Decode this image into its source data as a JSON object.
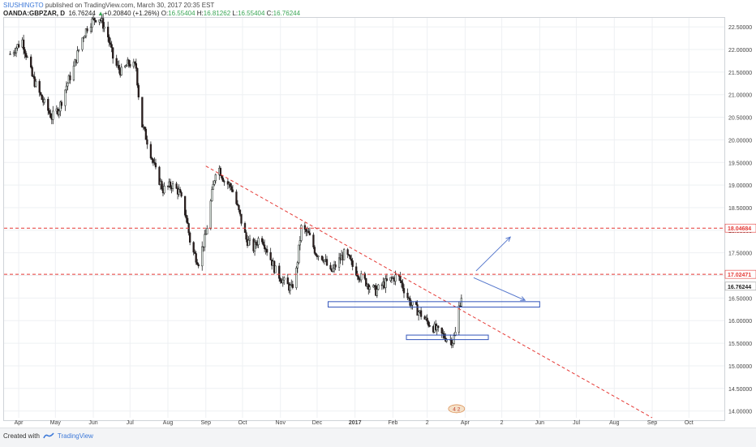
{
  "header": {
    "author": "SIUSHINGTO",
    "published": "published on TradingView.com, March 30, 2017 20:35 EST",
    "symbol": "OANDA:GBPZAR, D",
    "last": "16.76244",
    "change_arrow": "▲",
    "change": "+0.20840 (+1.26%)",
    "open_label": "O:",
    "open": "16.55404",
    "high_label": "H:",
    "high": "16.81262",
    "low_label": "L:",
    "low": "16.55404",
    "close_label": "C:",
    "close": "16.76244"
  },
  "footer": {
    "created_with": "Created with",
    "brand": "TradingView"
  },
  "colors": {
    "bull": "#e8f3ec",
    "bear": "#2b1a1a",
    "resistance": "#e53935",
    "box": "#3355bb",
    "arrow": "#5577cc",
    "grid": "#eef0f3"
  },
  "chart_data": {
    "type": "candlestick",
    "instrument": "OANDA:GBPZAR",
    "timeframe": "D",
    "price_axis": {
      "min": 13.85,
      "max": 22.7,
      "ticks": [
        "22.50000",
        "22.00000",
        "21.50000",
        "21.00000",
        "20.50000",
        "20.00000",
        "19.50000",
        "19.00000",
        "18.50000",
        "18.00000",
        "17.50000",
        "17.00000",
        "16.50000",
        "16.00000",
        "15.50000",
        "15.00000",
        "14.50000",
        "14.00000"
      ]
    },
    "time_axis": {
      "labels": [
        "Apr",
        "May",
        "Jun",
        "Jul",
        "Aug",
        "Sep",
        "Oct",
        "Nov",
        "Dec",
        "2017",
        "Feb",
        "2",
        "Apr",
        "2",
        "Jun",
        "Jul",
        "Aug",
        "Sep",
        "Oct"
      ],
      "bold_label": "2017"
    },
    "price_labels": [
      {
        "value": 18.04684,
        "text": "18.04684",
        "style": "resistance"
      },
      {
        "value": 17.02471,
        "text": "17.02471",
        "style": "resistance"
      },
      {
        "value": 16.76244,
        "text": "16.76244",
        "style": "last"
      }
    ],
    "horizontal_lines": [
      18.04684,
      17.02471
    ],
    "trendline": {
      "from": {
        "x": "2016-09-01",
        "y": 19.42
      },
      "to": {
        "x": "2017-09-01",
        "y": 13.85
      }
    },
    "zones": [
      {
        "x_from": "2016-12-10",
        "x_to": "2017-06-01",
        "y_top": 16.42,
        "y_bottom": 16.3
      },
      {
        "x_from": "2017-02-12",
        "x_to": "2017-04-20",
        "y_top": 15.68,
        "y_bottom": 15.58
      }
    ],
    "arrows": [
      {
        "from": {
          "x": "2017-04-10",
          "y": 17.1
        },
        "to": {
          "x": "2017-05-08",
          "y": 17.85
        }
      },
      {
        "from": {
          "x": "2017-04-08",
          "y": 16.95
        },
        "to": {
          "x": "2017-05-20",
          "y": 16.45
        }
      }
    ],
    "price_path": [
      {
        "x": "2016-03-25",
        "y": 21.9
      },
      {
        "x": "2016-04-04",
        "y": 22.2
      },
      {
        "x": "2016-04-12",
        "y": 21.4
      },
      {
        "x": "2016-04-20",
        "y": 20.9
      },
      {
        "x": "2016-04-28",
        "y": 20.5
      },
      {
        "x": "2016-05-04",
        "y": 20.7
      },
      {
        "x": "2016-05-10",
        "y": 21.2
      },
      {
        "x": "2016-05-16",
        "y": 21.6
      },
      {
        "x": "2016-05-22",
        "y": 22.2
      },
      {
        "x": "2016-05-28",
        "y": 22.55
      },
      {
        "x": "2016-06-05",
        "y": 22.75
      },
      {
        "x": "2016-06-12",
        "y": 22.4
      },
      {
        "x": "2016-06-18",
        "y": 21.7
      },
      {
        "x": "2016-06-24",
        "y": 21.5
      },
      {
        "x": "2016-06-30",
        "y": 21.7
      },
      {
        "x": "2016-07-06",
        "y": 21.6
      },
      {
        "x": "2016-07-10",
        "y": 20.4
      },
      {
        "x": "2016-07-16",
        "y": 19.9
      },
      {
        "x": "2016-07-22",
        "y": 19.3
      },
      {
        "x": "2016-07-28",
        "y": 18.9
      },
      {
        "x": "2016-08-04",
        "y": 19.0
      },
      {
        "x": "2016-08-10",
        "y": 18.85
      },
      {
        "x": "2016-08-16",
        "y": 18.3
      },
      {
        "x": "2016-08-20",
        "y": 17.6
      },
      {
        "x": "2016-08-26",
        "y": 17.3
      },
      {
        "x": "2016-09-01",
        "y": 17.9
      },
      {
        "x": "2016-09-06",
        "y": 18.8
      },
      {
        "x": "2016-09-10",
        "y": 19.5
      },
      {
        "x": "2016-09-16",
        "y": 19.1
      },
      {
        "x": "2016-09-22",
        "y": 18.95
      },
      {
        "x": "2016-09-28",
        "y": 18.4
      },
      {
        "x": "2016-10-04",
        "y": 17.8
      },
      {
        "x": "2016-10-10",
        "y": 17.6
      },
      {
        "x": "2016-10-16",
        "y": 17.9
      },
      {
        "x": "2016-10-22",
        "y": 17.5
      },
      {
        "x": "2016-10-28",
        "y": 17.1
      },
      {
        "x": "2016-11-04",
        "y": 16.85
      },
      {
        "x": "2016-11-10",
        "y": 16.7
      },
      {
        "x": "2016-11-14",
        "y": 17.1
      },
      {
        "x": "2016-11-18",
        "y": 18.05
      },
      {
        "x": "2016-11-24",
        "y": 17.9
      },
      {
        "x": "2016-11-30",
        "y": 17.5
      },
      {
        "x": "2016-12-06",
        "y": 17.4
      },
      {
        "x": "2016-12-12",
        "y": 17.05
      },
      {
        "x": "2016-12-18",
        "y": 17.3
      },
      {
        "x": "2016-12-24",
        "y": 17.5
      },
      {
        "x": "2016-12-30",
        "y": 17.2
      },
      {
        "x": "2017-01-06",
        "y": 16.95
      },
      {
        "x": "2017-01-12",
        "y": 16.8
      },
      {
        "x": "2017-01-18",
        "y": 16.65
      },
      {
        "x": "2017-01-24",
        "y": 16.8
      },
      {
        "x": "2017-01-30",
        "y": 16.9
      },
      {
        "x": "2017-02-05",
        "y": 17.0
      },
      {
        "x": "2017-02-10",
        "y": 16.7
      },
      {
        "x": "2017-02-16",
        "y": 16.35
      },
      {
        "x": "2017-02-22",
        "y": 16.2
      },
      {
        "x": "2017-02-28",
        "y": 16.0
      },
      {
        "x": "2017-03-06",
        "y": 15.85
      },
      {
        "x": "2017-03-12",
        "y": 15.7
      },
      {
        "x": "2017-03-18",
        "y": 15.6
      },
      {
        "x": "2017-03-22",
        "y": 15.55
      },
      {
        "x": "2017-03-25",
        "y": 15.8
      },
      {
        "x": "2017-03-27",
        "y": 16.3
      },
      {
        "x": "2017-03-29",
        "y": 16.55
      },
      {
        "x": "2017-03-30",
        "y": 16.76
      }
    ],
    "marker_label": "4 2"
  }
}
